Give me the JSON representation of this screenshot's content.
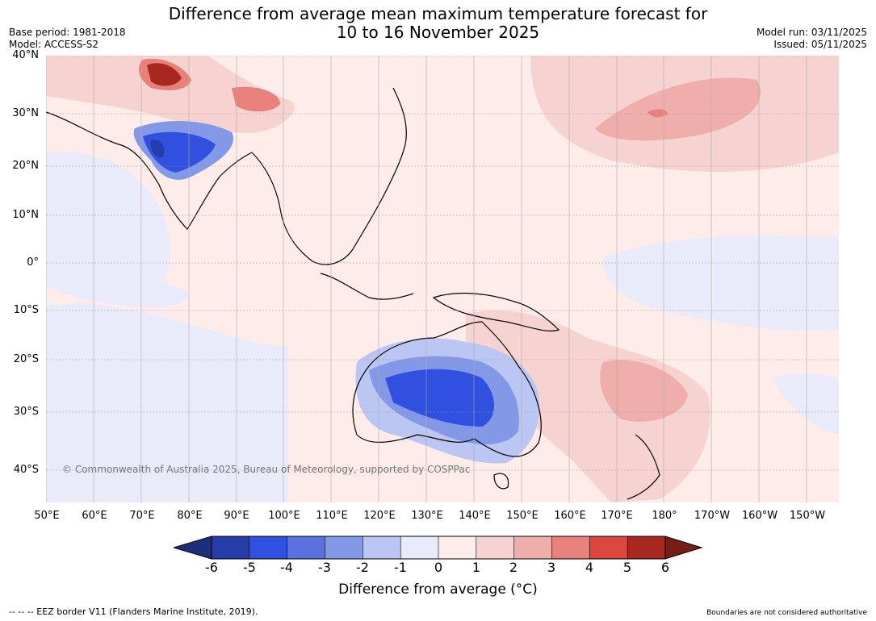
{
  "header": {
    "title_line1": "Difference from average mean maximum temperature forecast for",
    "title_line2": "10 to 16 November 2025",
    "base_period": "Base period: 1981-2018",
    "model": "Model: ACCESS-S2",
    "model_run": "Model run: 03/11/2025",
    "issued": "Issued: 05/11/2025"
  },
  "map": {
    "latitude_labels": [
      "40°N",
      "30°N",
      "20°N",
      "10°N",
      "0°",
      "10°S",
      "20°S",
      "30°S",
      "40°S"
    ],
    "longitude_labels": [
      "50°E",
      "60°E",
      "70°E",
      "80°E",
      "90°E",
      "100°E",
      "110°E",
      "120°E",
      "130°E",
      "140°E",
      "150°E",
      "160°E",
      "170°E",
      "180°",
      "170°W",
      "160°W",
      "150°W"
    ],
    "copyright": "© Commonwealth of Australia 2025, Bureau of Meteorology, supported by COSPPac"
  },
  "colorbar": {
    "ticks": [
      "-6",
      "-5",
      "-4",
      "-3",
      "-2",
      "-1",
      "0",
      "1",
      "2",
      "3",
      "4",
      "5",
      "6"
    ],
    "label": "Difference from average (°C)",
    "colors": [
      "#263cab",
      "#3050df",
      "#5a72e0",
      "#8399e8",
      "#bcc6f2",
      "#e9ebfb",
      "#fdecea",
      "#f6d3d1",
      "#efaeab",
      "#e8807b",
      "#dc4740",
      "#a8281f"
    ],
    "under_color": "#1f2e7a",
    "over_color": "#771c16"
  },
  "footer": {
    "eez_note": "--  --  -- EEZ border V11 (Flanders Marine Institute, 2019).",
    "boundaries_note": "Boundaries are not considered authoritative"
  }
}
